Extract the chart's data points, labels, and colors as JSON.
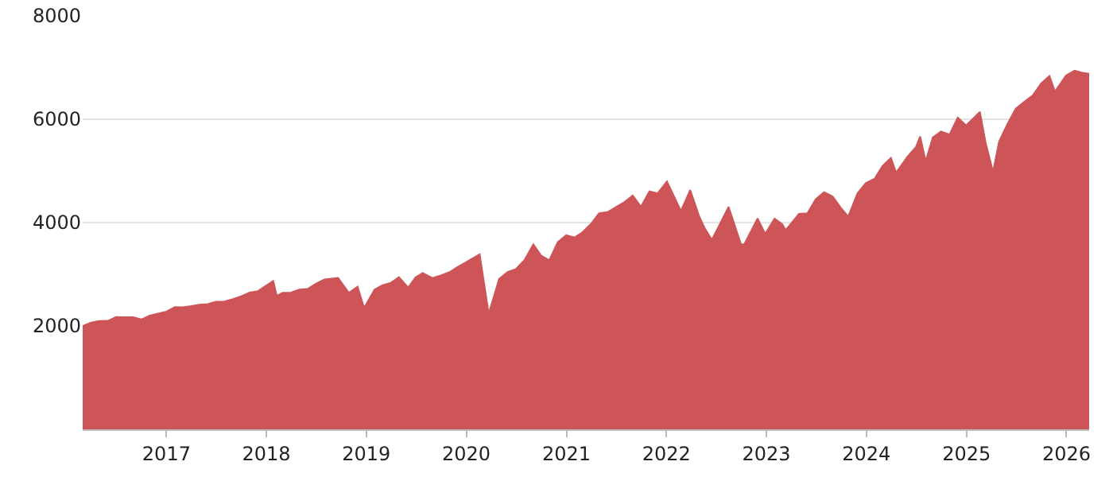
{
  "chart_data": {
    "type": "area",
    "x": [
      "2016-03-01",
      "2016-04-01",
      "2016-05-01",
      "2016-06-01",
      "2016-07-01",
      "2016-08-01",
      "2016-09-01",
      "2016-10-01",
      "2016-11-01",
      "2016-12-01",
      "2017-01-01",
      "2017-02-01",
      "2017-03-01",
      "2017-04-01",
      "2017-05-01",
      "2017-06-01",
      "2017-07-01",
      "2017-08-01",
      "2017-09-01",
      "2017-10-01",
      "2017-11-01",
      "2017-12-01",
      "2018-01-26",
      "2018-02-08",
      "2018-03-01",
      "2018-04-01",
      "2018-05-01",
      "2018-06-01",
      "2018-07-01",
      "2018-08-01",
      "2018-09-20",
      "2018-10-29",
      "2018-11-30",
      "2018-12-24",
      "2019-01-31",
      "2019-02-28",
      "2019-03-31",
      "2019-04-30",
      "2019-06-03",
      "2019-06-30",
      "2019-07-26",
      "2019-08-31",
      "2019-09-30",
      "2019-10-31",
      "2019-11-30",
      "2019-12-31",
      "2020-02-19",
      "2020-03-23",
      "2020-04-30",
      "2020-05-31",
      "2020-06-30",
      "2020-07-31",
      "2020-09-02",
      "2020-09-30",
      "2020-10-30",
      "2020-11-30",
      "2020-12-31",
      "2021-01-31",
      "2021-02-28",
      "2021-03-31",
      "2021-04-30",
      "2021-05-31",
      "2021-06-30",
      "2021-07-31",
      "2021-08-31",
      "2021-09-30",
      "2021-10-31",
      "2021-11-30",
      "2022-01-03",
      "2022-02-23",
      "2022-03-29",
      "2022-04-30",
      "2022-05-20",
      "2022-06-16",
      "2022-08-16",
      "2022-09-30",
      "2022-10-12",
      "2022-11-30",
      "2022-12-28",
      "2023-01-31",
      "2023-02-28",
      "2023-03-13",
      "2023-04-30",
      "2023-05-31",
      "2023-06-30",
      "2023-07-31",
      "2023-08-31",
      "2023-09-30",
      "2023-10-27",
      "2023-11-30",
      "2023-12-31",
      "2024-01-31",
      "2024-02-29",
      "2024-03-31",
      "2024-04-19",
      "2024-05-31",
      "2024-06-30",
      "2024-07-16",
      "2024-08-05",
      "2024-08-31",
      "2024-09-30",
      "2024-10-31",
      "2024-11-30",
      "2024-12-31",
      "2025-02-19",
      "2025-03-13",
      "2025-04-08",
      "2025-04-30",
      "2025-05-31",
      "2025-06-30",
      "2025-07-31",
      "2025-08-31",
      "2025-09-30",
      "2025-10-31",
      "2025-11-20",
      "2025-12-31",
      "2026-01-31",
      "2026-02-28",
      "2026-03-25"
    ],
    "values": [
      2000,
      2065,
      2097,
      2099,
      2174,
      2171,
      2168,
      2126,
      2199,
      2239,
      2279,
      2364,
      2363,
      2384,
      2412,
      2423,
      2470,
      2472,
      2519,
      2575,
      2648,
      2674,
      2872,
      2581,
      2641,
      2648,
      2705,
      2718,
      2816,
      2902,
      2930,
      2641,
      2760,
      2351,
      2704,
      2784,
      2834,
      2946,
      2744,
      2942,
      3025,
      2926,
      2977,
      3038,
      3141,
      3231,
      3386,
      2237,
      2912,
      3044,
      3100,
      3271,
      3580,
      3363,
      3270,
      3622,
      3756,
      3714,
      3811,
      3973,
      4181,
      4204,
      4298,
      4395,
      4523,
      4308,
      4605,
      4567,
      4796,
      4225,
      4631,
      4132,
      3901,
      3667,
      4305,
      3586,
      3577,
      4080,
      3783,
      4077,
      3970,
      3855,
      4169,
      4180,
      4450,
      4589,
      4508,
      4288,
      4117,
      4568,
      4770,
      4846,
      5096,
      5254,
      4967,
      5278,
      5460,
      5667,
      5186,
      5648,
      5762,
      5705,
      6032,
      5882,
      6144,
      5522,
      4982,
      5569,
      5912,
      6205,
      6339,
      6460,
      6688,
      6840,
      6538,
      6850,
      6940,
      6900,
      6880
    ],
    "color": "#cd5557",
    "xlim": [
      "2016-03-01",
      "2026-03-25"
    ],
    "xticks": [
      {
        "value": "2017-01-01",
        "label": "2017"
      },
      {
        "value": "2018-01-01",
        "label": "2018"
      },
      {
        "value": "2019-01-01",
        "label": "2019"
      },
      {
        "value": "2020-01-01",
        "label": "2020"
      },
      {
        "value": "2021-01-01",
        "label": "2021"
      },
      {
        "value": "2022-01-01",
        "label": "2022"
      },
      {
        "value": "2023-01-01",
        "label": "2023"
      },
      {
        "value": "2024-01-01",
        "label": "2024"
      },
      {
        "value": "2025-01-01",
        "label": "2025"
      },
      {
        "value": "2026-01-01",
        "label": "2026"
      }
    ],
    "ylim": [
      0,
      8000
    ],
    "yticks": [
      2000,
      4000,
      6000,
      8000
    ],
    "grid": "y"
  }
}
